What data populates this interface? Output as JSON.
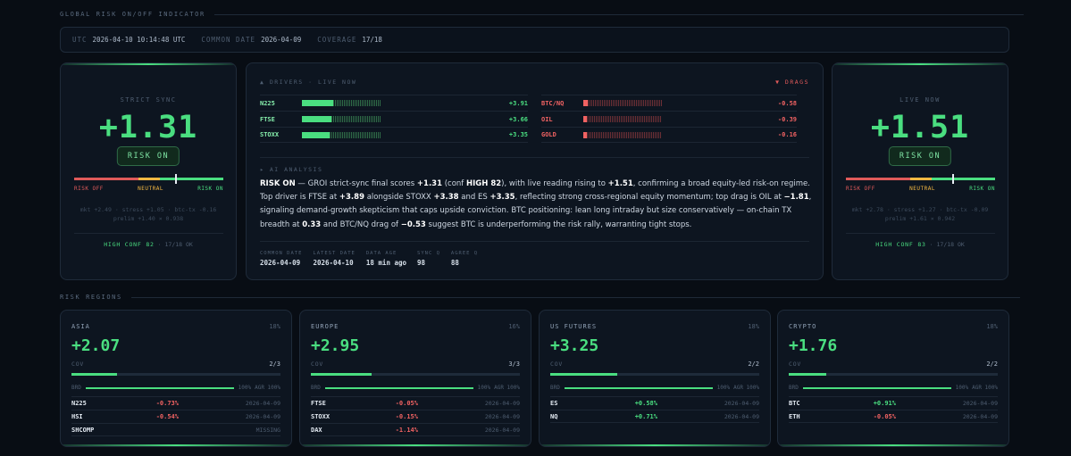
{
  "header": {
    "title": "GLOBAL RISK ON/OFF INDICATOR"
  },
  "infobar": {
    "utc_label": "UTC",
    "utc_value": "2026-04-10 10:14:48 UTC",
    "common_label": "COMMON DATE",
    "common_value": "2026-04-09",
    "coverage_label": "COVERAGE",
    "coverage_value": "17/18"
  },
  "strict": {
    "label": "STRICT SYNC",
    "score": "+1.31",
    "badge": "RISK ON",
    "needle": 0.68,
    "meter_off": "RISK OFF",
    "meter_neutral": "NEUTRAL",
    "meter_on": "RISK ON",
    "sub1": "mkt +2.49 · stress +1.05 · btc-tx -0.16",
    "sub2": "prelim +1.40 × 0.938",
    "conf": "HIGH CONF 82",
    "ok": "· 17/18 OK"
  },
  "live": {
    "label": "LIVE NOW",
    "score": "+1.51",
    "badge": "RISK ON",
    "needle": 0.72,
    "meter_off": "RISK OFF",
    "meter_neutral": "NEUTRAL",
    "meter_on": "RISK ON",
    "sub1": "mkt +2.78 · stress +1.27 · btc-tx -0.09",
    "sub2": "prelim +1.61 × 0.942",
    "conf": "HIGH CONF 83",
    "ok": "· 17/18 OK"
  },
  "drivers": {
    "header": "▲ DRIVERS · LIVE NOW",
    "drags_header": "▼ DRAGS",
    "items": [
      {
        "name": "N225",
        "value": "+3.91",
        "fill": 0.4
      },
      {
        "name": "FTSE",
        "value": "+3.66",
        "fill": 0.38
      },
      {
        "name": "STOXX",
        "value": "+3.35",
        "fill": 0.35
      }
    ],
    "drags": [
      {
        "name": "BTC/NQ",
        "value": "-0.58",
        "fill": 0.06
      },
      {
        "name": "OIL",
        "value": "-0.39",
        "fill": 0.04
      },
      {
        "name": "GOLD",
        "value": "-0.16",
        "fill": 0.02
      }
    ]
  },
  "ai": {
    "label": "▸ AI ANALYSIS",
    "p1": "RISK ON",
    "p2": " — GROI strict-sync final scores ",
    "p3": "+1.31",
    "p4": " (conf ",
    "p5": "HIGH 82",
    "p6": "), with live reading rising to ",
    "p7": "+1.51",
    "p8": ", confirming a broad equity-led risk-on regime. Top driver is FTSE at ",
    "p9": "+3.89",
    "p10": " alongside STOXX ",
    "p11": "+3.38",
    "p12": " and ES ",
    "p13": "+3.35",
    "p14": ", reflecting strong cross-regional equity momentum; top drag is OIL at ",
    "p15": "−1.81",
    "p16": ", signaling demand-growth skepticism that caps upside conviction. BTC positioning: lean long intraday but size conservatively — on-chain TX breadth at ",
    "p17": "0.33",
    "p18": " and BTC/NQ drag of ",
    "p19": "−0.53",
    "p20": " suggest BTC is underperforming the risk rally, warranting tight stops."
  },
  "stats": [
    {
      "label": "COMMON DATE",
      "value": "2026-04-09"
    },
    {
      "label": "LATEST DATE",
      "value": "2026-04-10"
    },
    {
      "label": "DATA AGE",
      "value": "18 min ago"
    },
    {
      "label": "SYNC Q",
      "value": "98"
    },
    {
      "label": "AGREE Q",
      "value": "88"
    }
  ],
  "regions_title": "RISK REGIONS",
  "regions": [
    {
      "name": "ASIA",
      "weight": "18%",
      "score": "+2.07",
      "cov_label": "COV",
      "cov": "2/3",
      "cov_fill": 0.22,
      "brd_label": "BRD",
      "brd": "100%",
      "agr": "AGR 100%",
      "rows": [
        {
          "name": "N225",
          "chg": "-0.73%",
          "date": "2026-04-09",
          "dir": "neg"
        },
        {
          "name": "HSI",
          "chg": "-0.54%",
          "date": "2026-04-09",
          "dir": "neg"
        },
        {
          "name": "SHCOMP",
          "chg": "",
          "date": "MISSING",
          "dir": "none"
        }
      ]
    },
    {
      "name": "EUROPE",
      "weight": "16%",
      "score": "+2.95",
      "cov_label": "COV",
      "cov": "3/3",
      "cov_fill": 0.29,
      "brd_label": "BRD",
      "brd": "100%",
      "agr": "AGR 100%",
      "rows": [
        {
          "name": "FTSE",
          "chg": "-0.05%",
          "date": "2026-04-09",
          "dir": "neg"
        },
        {
          "name": "STOXX",
          "chg": "-0.15%",
          "date": "2026-04-09",
          "dir": "neg"
        },
        {
          "name": "DAX",
          "chg": "-1.14%",
          "date": "2026-04-09",
          "dir": "neg"
        }
      ]
    },
    {
      "name": "US FUTURES",
      "weight": "18%",
      "score": "+3.25",
      "cov_label": "COV",
      "cov": "2/2",
      "cov_fill": 0.32,
      "brd_label": "BRD",
      "brd": "100%",
      "agr": "AGR 100%",
      "rows": [
        {
          "name": "ES",
          "chg": "+0.58%",
          "date": "2026-04-09",
          "dir": "pos"
        },
        {
          "name": "NQ",
          "chg": "+0.71%",
          "date": "2026-04-09",
          "dir": "pos"
        }
      ]
    },
    {
      "name": "CRYPTO",
      "weight": "18%",
      "score": "+1.76",
      "cov_label": "COV",
      "cov": "2/2",
      "cov_fill": 0.18,
      "brd_label": "BRD",
      "brd": "100%",
      "agr": "AGR 100%",
      "rows": [
        {
          "name": "BTC",
          "chg": "+0.91%",
          "date": "2026-04-09",
          "dir": "pos"
        },
        {
          "name": "ETH",
          "chg": "-0.05%",
          "date": "2026-04-09",
          "dir": "neg"
        }
      ]
    }
  ],
  "colors": {
    "accent": "#4ade80",
    "negative": "#f06262",
    "neutral": "#f5b942",
    "bg": "#080d14"
  }
}
